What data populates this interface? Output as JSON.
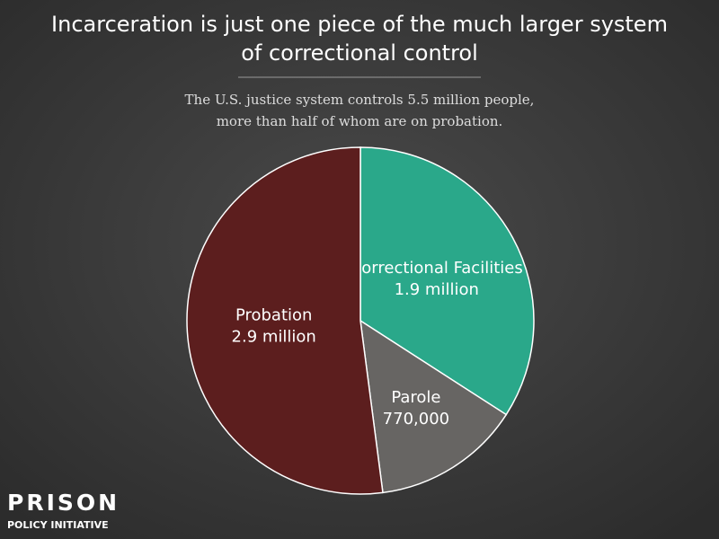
{
  "chart_data": {
    "type": "pie",
    "title": [
      "Incarceration is just one piece of the much larger system",
      "of correctional control"
    ],
    "subtitle": [
      "The U.S. justice system controls 5.5 million people,",
      "more than half of whom are on probation."
    ],
    "categories": [
      "Correctional Facilities",
      "Parole",
      "Probation"
    ],
    "values": [
      1900000,
      770000,
      2900000
    ],
    "value_labels": [
      "1.9 million",
      "770,000",
      "2.9 million"
    ],
    "colors": [
      "#2aa88a",
      "#676563",
      "#5c1e1e"
    ]
  },
  "logo": {
    "name": "PRISON",
    "tagline": "POLICY INITIATIVE"
  }
}
